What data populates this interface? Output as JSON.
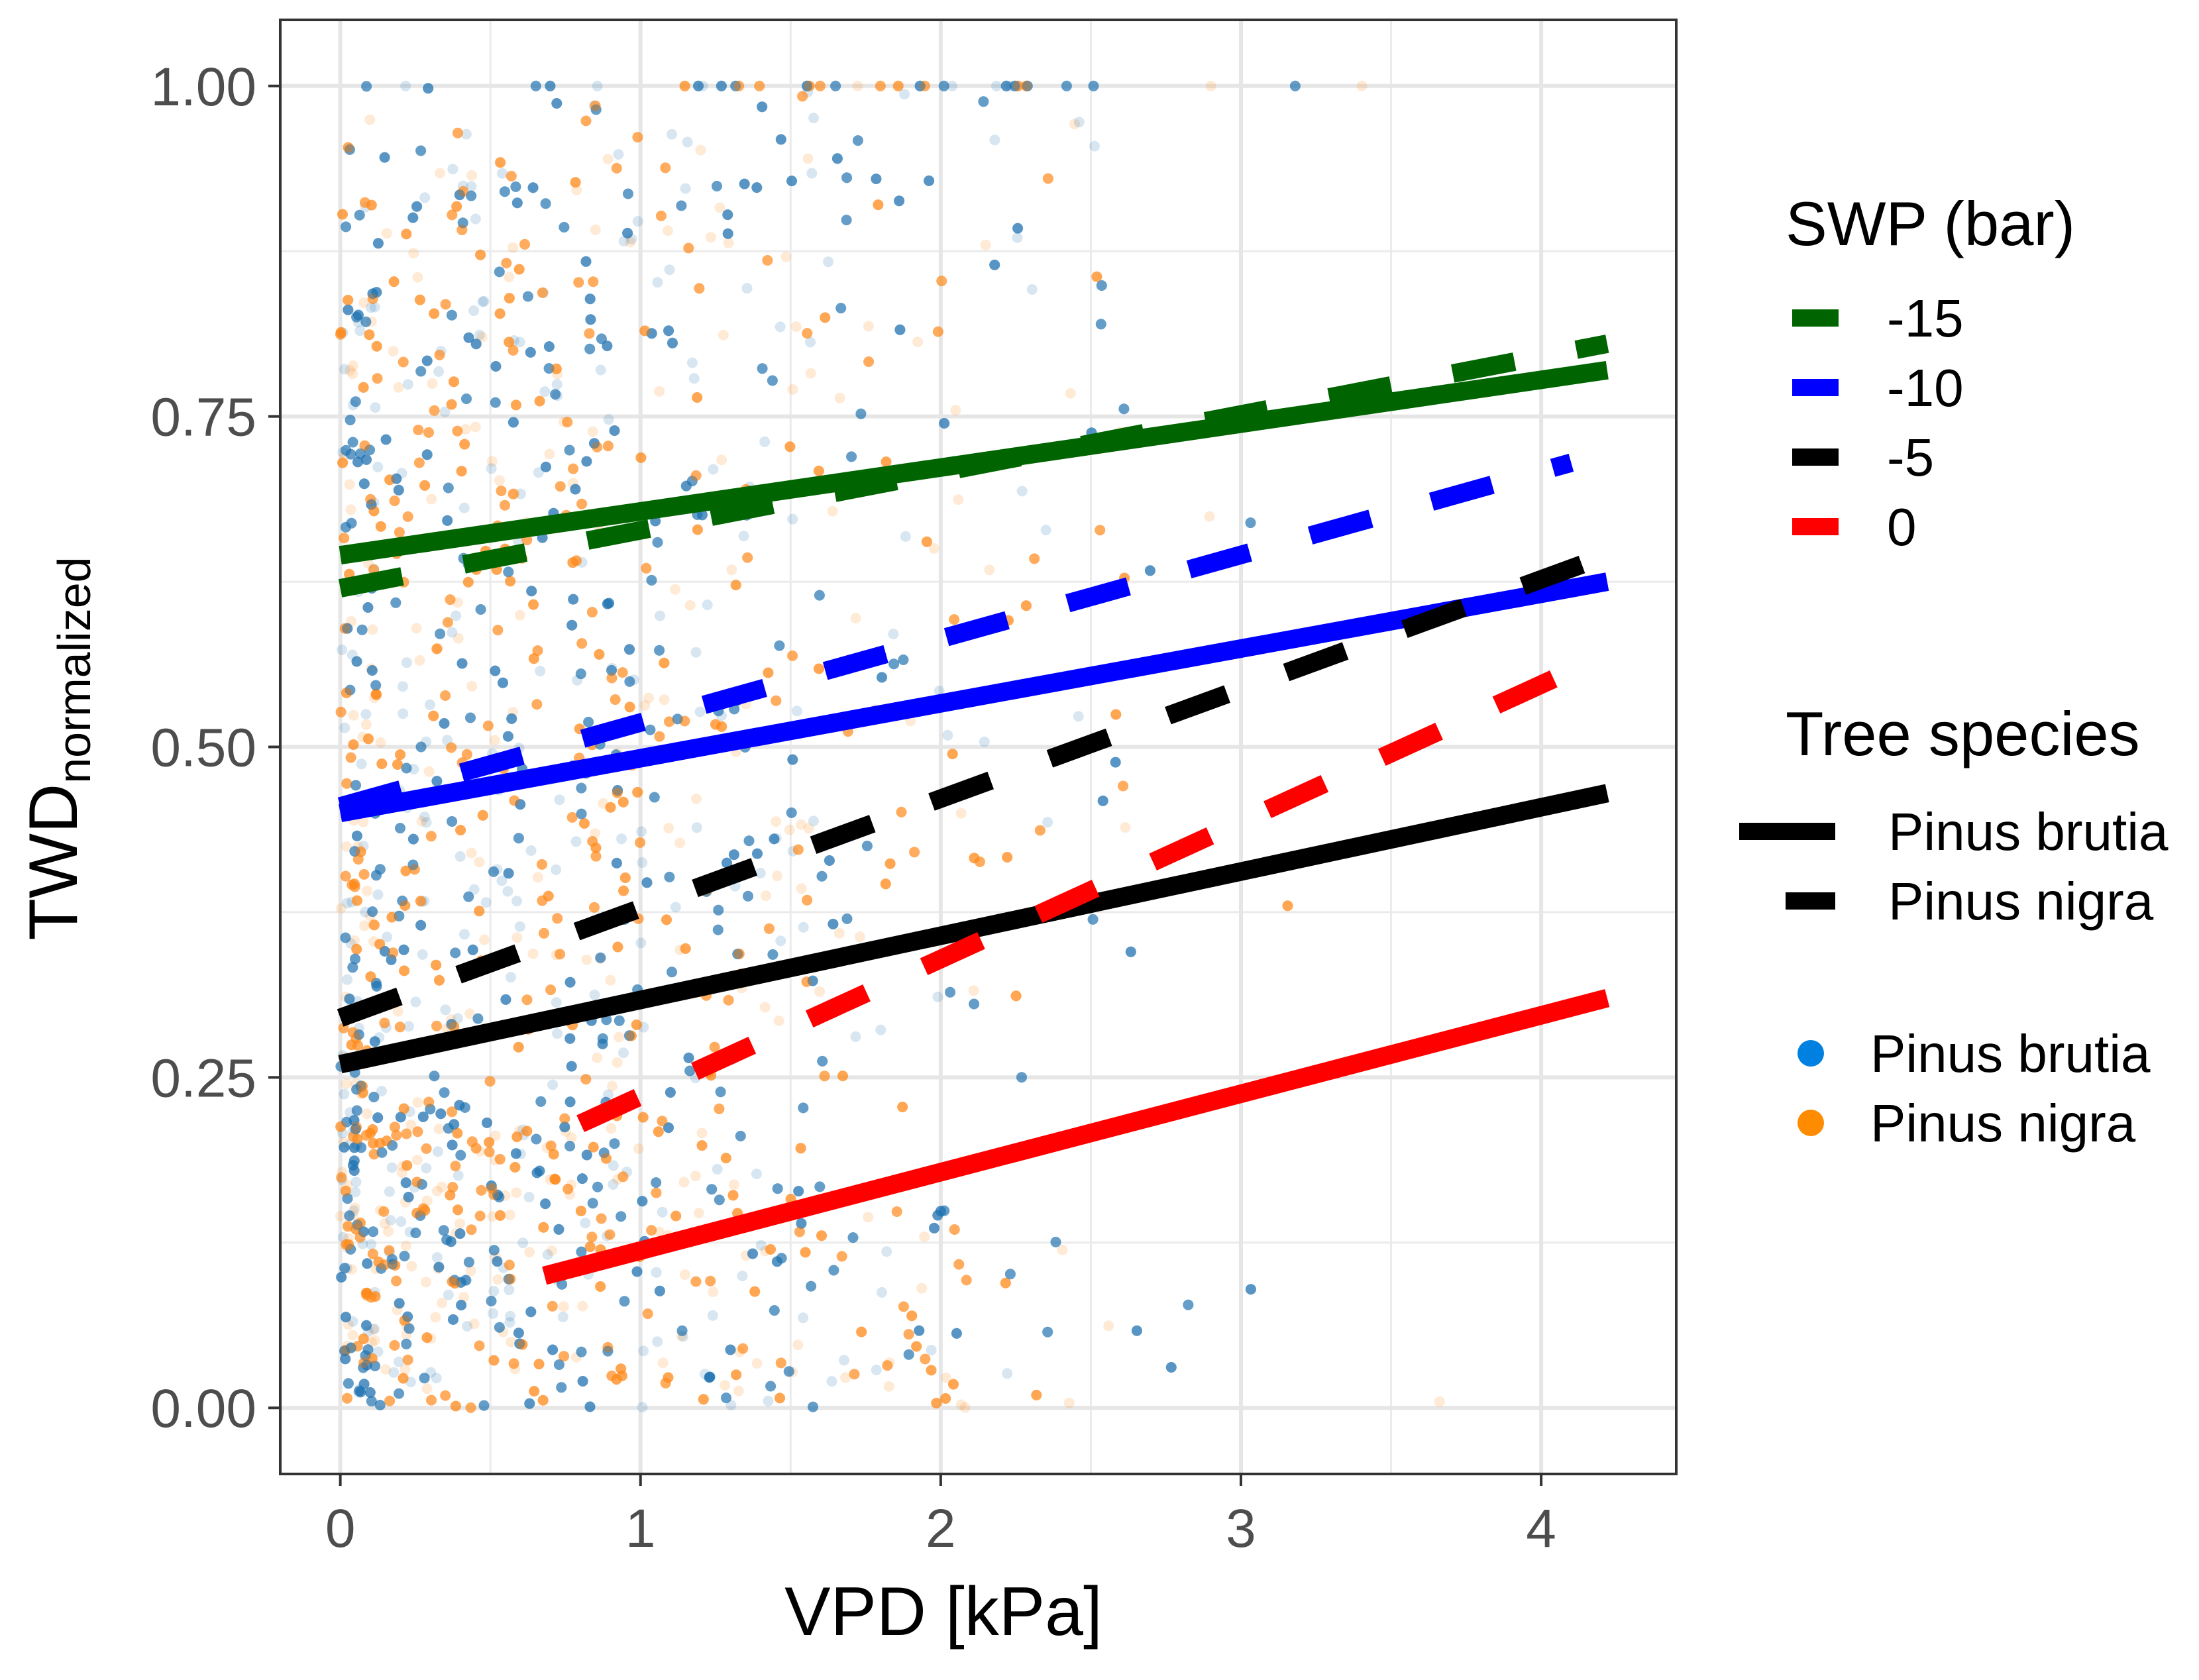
{
  "chart_data": {
    "type": "scatter",
    "xlabel": "VPD [kPa]",
    "ylabel_main": "TWD",
    "ylabel_sub": "normalized",
    "xlim": [
      -0.2,
      4.45
    ],
    "ylim": [
      -0.05,
      1.05
    ],
    "xticks": [
      0,
      1,
      2,
      3,
      4
    ],
    "xtick_labels": [
      "0",
      "1",
      "2",
      "3",
      "4"
    ],
    "yticks": [
      0,
      0.25,
      0.5,
      0.75,
      1.0
    ],
    "ytick_labels": [
      "0.00",
      "0.25",
      "0.50",
      "0.75",
      "1.00"
    ],
    "grid": true,
    "swp_legend": {
      "title": "SWP (bar)",
      "entries": [
        {
          "label": "-15",
          "color": "#006400"
        },
        {
          "label": "-10",
          "color": "#0000ff"
        },
        {
          "label": "-5",
          "color": "#000000"
        },
        {
          "label": "0",
          "color": "#ff0000"
        }
      ]
    },
    "species_legend": {
      "title": "Tree species",
      "entries": [
        {
          "label": "Pinus brutia",
          "linetype": "solid"
        },
        {
          "label": "Pinus nigra",
          "linetype": "dashed"
        }
      ]
    },
    "point_legend": {
      "entries": [
        {
          "label": "Pinus brutia",
          "color": "#0080e0"
        },
        {
          "label": "Pinus nigra",
          "color": "#ff8c00"
        }
      ]
    },
    "point_colors": {
      "Pinus brutia": "#1f77b4",
      "Pinus nigra": "#ff8c1a"
    },
    "series": [
      {
        "name": "Pinus brutia, SWP -15",
        "swp": "-15",
        "species": "Pinus brutia",
        "linetype": "solid",
        "color": "#006400",
        "x": [
          0,
          4.22
        ],
        "y": [
          0.645,
          0.785
        ]
      },
      {
        "name": "Pinus nigra, SWP -15",
        "swp": "-15",
        "species": "Pinus nigra",
        "linetype": "dashed",
        "color": "#006400",
        "x": [
          0,
          4.22
        ],
        "y": [
          0.62,
          0.805
        ]
      },
      {
        "name": "Pinus brutia, SWP -10",
        "swp": "-10",
        "species": "Pinus brutia",
        "linetype": "solid",
        "color": "#0000ff",
        "x": [
          0,
          4.22
        ],
        "y": [
          0.45,
          0.625
        ]
      },
      {
        "name": "Pinus nigra, SWP -10",
        "swp": "-10",
        "species": "Pinus nigra",
        "linetype": "dashed",
        "color": "#0000ff",
        "x": [
          0,
          4.1
        ],
        "y": [
          0.455,
          0.715
        ]
      },
      {
        "name": "Pinus brutia, SWP -5",
        "swp": "-5",
        "species": "Pinus brutia",
        "linetype": "solid",
        "color": "#000000",
        "x": [
          0,
          4.22
        ],
        "y": [
          0.26,
          0.465
        ]
      },
      {
        "name": "Pinus nigra, SWP -5",
        "swp": "-5",
        "species": "Pinus nigra",
        "linetype": "dashed",
        "color": "#000000",
        "x": [
          0,
          4.22
        ],
        "y": [
          0.295,
          0.645
        ]
      },
      {
        "name": "Pinus brutia, SWP 0",
        "swp": "0",
        "species": "Pinus brutia",
        "linetype": "solid",
        "color": "#ff0000",
        "x": [
          0.68,
          4.22
        ],
        "y": [
          0.1,
          0.31
        ]
      },
      {
        "name": "Pinus nigra, SWP 0",
        "swp": "0",
        "species": "Pinus nigra",
        "linetype": "dashed",
        "color": "#ff0000",
        "x": [
          0.8,
          4.22
        ],
        "y": [
          0.215,
          0.57
        ]
      }
    ]
  }
}
